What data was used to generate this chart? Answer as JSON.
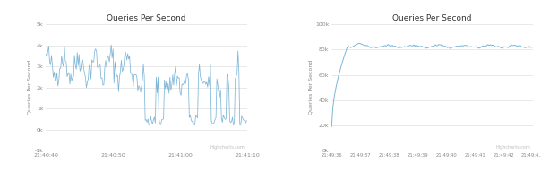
{
  "chart1": {
    "title": "Queries Per Second",
    "ylabel": "Queries Per Second",
    "xlabel_ticks": [
      "21:40:40",
      "21:40:50",
      "21:41:00",
      "21:41:10"
    ],
    "ytick_labels": [
      "-1k",
      "0k",
      "1k",
      "2k",
      "3k",
      "4k",
      "5k"
    ],
    "ylim": [
      -1000,
      5000
    ],
    "ytick_vals": [
      -1000,
      0,
      1000,
      2000,
      3000,
      4000,
      5000
    ],
    "line_color": "#7cb5d6",
    "bg_color": "#ffffff",
    "grid_color": "#e0e0e0",
    "watermark": "Highcharts.com"
  },
  "chart2": {
    "title": "Queries Per Second",
    "ylabel": "Queries Per Second",
    "xlabel_ticks": [
      "21:49:36",
      "21:49:37",
      "21:49:38",
      "21:49:39",
      "21:49:40",
      "21:49:41",
      "21:49:42",
      "21:49:4…"
    ],
    "ytick_labels": [
      "0k",
      "20k",
      "40k",
      "60k",
      "80k",
      "100k"
    ],
    "ylim": [
      0,
      100000
    ],
    "ytick_vals": [
      0,
      20000,
      40000,
      60000,
      80000,
      100000
    ],
    "line_color": "#7cb5d6",
    "bg_color": "#ffffff",
    "grid_color": "#e0e0e0",
    "watermark": "Highcharts.com"
  }
}
